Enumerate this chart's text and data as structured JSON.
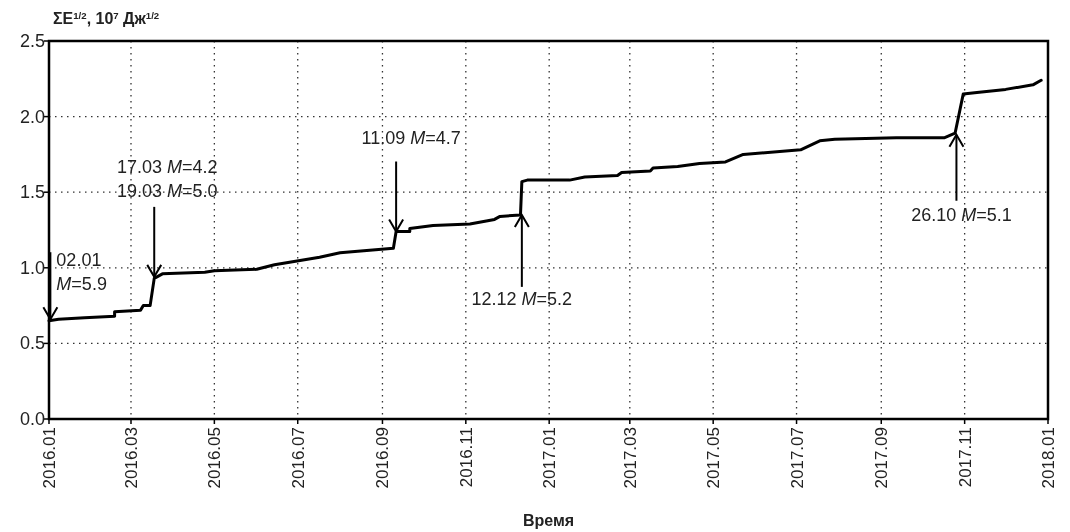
{
  "chart_data": {
    "type": "line",
    "ylabel": "ΣE$^{1/2}$, 10$^{7}$ Дж$^{1/2}$",
    "xlabel": "Время",
    "x": [
      "2016-01-01",
      "2016-01-08",
      "2016-01-27",
      "2016-02-18",
      "2016-02-18",
      "2016-03-08",
      "2016-03-10",
      "2016-03-15",
      "2016-03-18",
      "2016-03-24",
      "2016-04-24",
      "2016-05-01",
      "2016-06-01",
      "2016-06-14",
      "2016-07-17",
      "2016-08-01",
      "2016-09-09",
      "2016-09-11",
      "2016-09-21",
      "2016-09-21",
      "2016-10-08",
      "2016-11-04",
      "2016-11-22",
      "2016-11-26",
      "2016-12-11",
      "2016-12-12",
      "2016-12-16",
      "2017-01-16",
      "2017-01-27",
      "2017-02-20",
      "2017-02-23",
      "2017-03-16",
      "2017-03-18",
      "2017-04-05",
      "2017-04-21",
      "2017-05-10",
      "2017-05-23",
      "2017-07-04",
      "2017-07-18",
      "2017-07-29",
      "2017-09-12",
      "2017-10-17",
      "2017-10-25",
      "2017-10-31",
      "2017-11-10",
      "2017-12-01",
      "2017-12-21",
      "2017-12-27"
    ],
    "series": [
      {
        "color": "#000000",
        "values": [
          0.65,
          0.66,
          0.67,
          0.68,
          0.71,
          0.72,
          0.75,
          0.75,
          0.93,
          0.96,
          0.97,
          0.98,
          0.99,
          1.02,
          1.07,
          1.1,
          1.13,
          1.24,
          1.24,
          1.26,
          1.28,
          1.29,
          1.32,
          1.34,
          1.35,
          1.57,
          1.58,
          1.58,
          1.6,
          1.61,
          1.63,
          1.64,
          1.66,
          1.67,
          1.69,
          1.7,
          1.75,
          1.78,
          1.84,
          1.85,
          1.86,
          1.86,
          1.89,
          2.15,
          2.16,
          2.18,
          2.21,
          2.24
        ]
      }
    ],
    "xlim": [
      "2016-01",
      "2018-01"
    ],
    "xticks": [
      {
        "value": "2016-01",
        "label": "2016.01"
      },
      {
        "value": "2016-03",
        "label": "2016.03"
      },
      {
        "value": "2016-05",
        "label": "2016.05"
      },
      {
        "value": "2016-07",
        "label": "2016.07"
      },
      {
        "value": "2016-09",
        "label": "2016.09"
      },
      {
        "value": "2016-11",
        "label": "2016.11"
      },
      {
        "value": "2017-01",
        "label": "2017.01"
      },
      {
        "value": "2017-03",
        "label": "2017.03"
      },
      {
        "value": "2017-05",
        "label": "2017.05"
      },
      {
        "value": "2017-07",
        "label": "2017.07"
      },
      {
        "value": "2017-09",
        "label": "2017.09"
      },
      {
        "value": "2017-11",
        "label": "2017.11"
      },
      {
        "value": "2018-01",
        "label": "2018.01"
      }
    ],
    "ylim": [
      0,
      2.5
    ],
    "yticks": [
      {
        "value": 0,
        "label": "0.0"
      },
      {
        "value": 0.5,
        "label": "0.5"
      },
      {
        "value": 1,
        "label": "1.0"
      },
      {
        "value": 1.5,
        "label": "1.5"
      },
      {
        "value": 2,
        "label": "2.0"
      },
      {
        "value": 2.5,
        "label": "2.5"
      }
    ],
    "grid": true,
    "line_style": "solid",
    "annotations": [
      {
        "text": "02.01\nM=5.9",
        "x": "2016-01-02",
        "y": 0.66
      },
      {
        "text": "17.03 M=4.2\n19.03 M=5.0",
        "x": "2016-03-18",
        "y": 0.94
      },
      {
        "text": "11.09 M=4.7",
        "x": "2016-09-11",
        "y": 1.24
      },
      {
        "text": "12.12 M=5.2",
        "x": "2016-12-12",
        "y": 1.35
      },
      {
        "text": "26.10 M=5.1",
        "x": "2017-10-26",
        "y": 1.88
      }
    ]
  }
}
